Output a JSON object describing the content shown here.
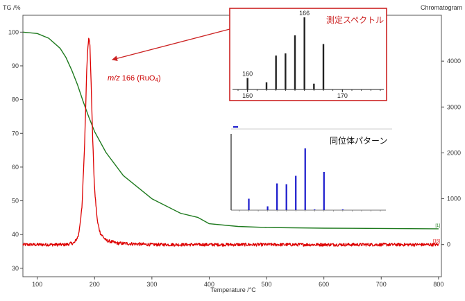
{
  "chart_data": [
    {
      "type": "line",
      "title": "",
      "xlabel": "Temperature /°C",
      "ylabel": "TG /%",
      "y2label": "Chromatogram",
      "xlim": [
        75,
        805
      ],
      "ylim": [
        27.5,
        105
      ],
      "y2lim": [
        -700,
        5000
      ],
      "x_ticks": [
        100,
        200,
        300,
        400,
        500,
        600,
        700,
        800
      ],
      "y_ticks": [
        30,
        40,
        50,
        60,
        70,
        80,
        90,
        100
      ],
      "y2_ticks": [
        0,
        1000,
        2000,
        3000,
        4000
      ],
      "grid": false,
      "series": [
        {
          "name": "",
          "axis": "left",
          "color": "#1e7a1e",
          "end_label": "[1]",
          "x": [
            75,
            100,
            120,
            140,
            150,
            160,
            170,
            180,
            190,
            200,
            220,
            250,
            300,
            350,
            380,
            400,
            450,
            500,
            600,
            700,
            800
          ],
          "y": [
            100,
            99.6,
            98.2,
            95.2,
            92.5,
            88.8,
            84.5,
            79.5,
            74.8,
            70.5,
            64.3,
            57.5,
            50.6,
            46.3,
            45.1,
            43.2,
            42.4,
            42.1,
            41.9,
            41.8,
            41.7
          ]
        },
        {
          "name": "",
          "axis": "right",
          "color": "#dd0000",
          "end_label": "[15]",
          "x": [
            75,
            150,
            165,
            172,
            178,
            183,
            186,
            188,
            190,
            192,
            194,
            197,
            200,
            205,
            210,
            220,
            240,
            300,
            800
          ],
          "y": [
            0,
            0,
            40,
            200,
            800,
            2300,
            3700,
            4300,
            4500,
            4350,
            3500,
            2200,
            1200,
            500,
            250,
            90,
            30,
            0,
            0
          ],
          "noise": 35
        }
      ],
      "annotations": [
        {
          "prefix": "m/z",
          "text": " 166 (RuO",
          "sub": "4",
          "suffix": ")",
          "color": "#cc0000"
        }
      ]
    },
    {
      "type": "bar",
      "title": "測定スペクトル",
      "color": "#222222",
      "border_color": "#cc2222",
      "xlim": [
        159,
        174
      ],
      "ylim": [
        0,
        100
      ],
      "x_ticks": [
        160,
        170
      ],
      "peak_labels": [
        "160",
        "166"
      ],
      "x": [
        160,
        162,
        163,
        164,
        165,
        166,
        167,
        168
      ],
      "values": [
        16,
        10,
        47,
        50,
        75,
        100,
        8,
        63
      ]
    },
    {
      "type": "bar",
      "title": "同位体パターン",
      "color": "#1a1acc",
      "legend": "",
      "xlim": [
        159,
        174
      ],
      "ylim": [
        0,
        100
      ],
      "x": [
        160,
        162,
        163,
        164,
        165,
        166,
        167,
        168,
        170
      ],
      "values": [
        15,
        5,
        35,
        34,
        45,
        81,
        1,
        50,
        1
      ]
    }
  ]
}
